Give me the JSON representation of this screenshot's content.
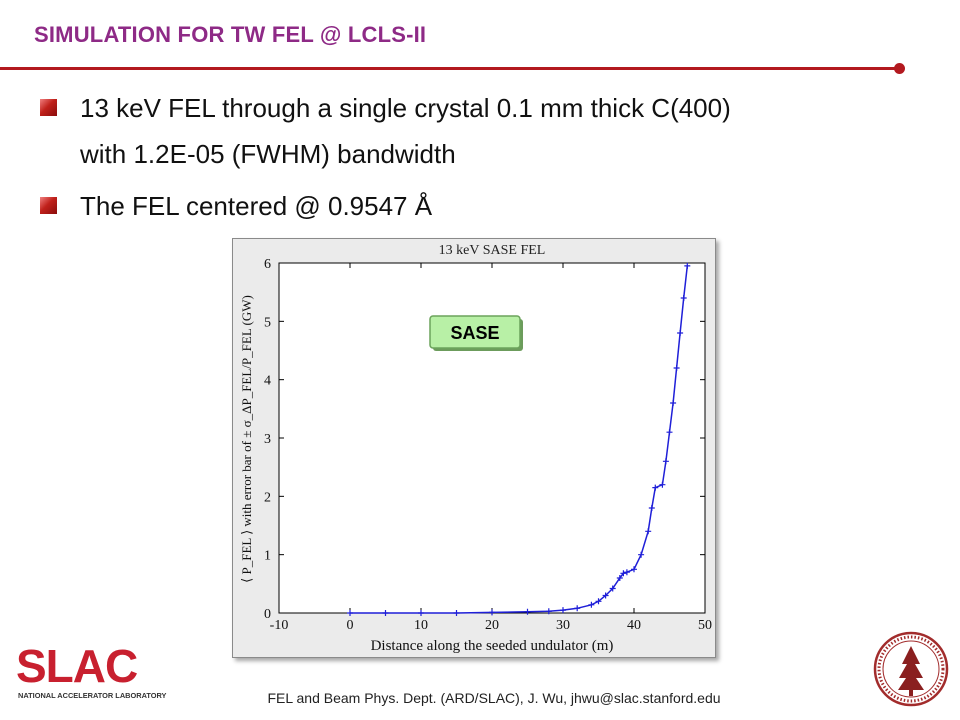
{
  "slide": {
    "title": "SIMULATION FOR TW FEL @ LCLS-II",
    "bullets": [
      "13 keV FEL through a single crystal 0.1 mm thick C(400)",
      "with 1.2E-05 (FWHM) bandwidth",
      "The FEL centered @ 0.9547 Å"
    ],
    "footer": "FEL and Beam Phys. Dept. (ARD/SLAC), J. Wu, jhwu@slac.stanford.edu",
    "logo_text": "SLAC",
    "logo_subtext": "NATIONAL ACCELERATOR LABORATORY",
    "colors": {
      "title": "#8e2a86",
      "rule": "#b3191f",
      "series": "#1f1fd8",
      "slac_red": "#c8202f"
    }
  },
  "chart_data": {
    "type": "line",
    "title": "13 keV SASE FEL",
    "xlabel": "Distance along the seeded undulator (m)",
    "ylabel": "⟨ P_FEL ⟩ with error bar of ± σ_ΔP_FEL/P_FEL (GW)",
    "xlim": [
      -10,
      50
    ],
    "ylim": [
      0,
      6
    ],
    "xticks": [
      -10,
      0,
      10,
      20,
      30,
      40,
      50
    ],
    "yticks": [
      0,
      1,
      2,
      3,
      4,
      5,
      6
    ],
    "annotation": "SASE",
    "series": [
      {
        "color": "#1f1fd8",
        "x": [
          0,
          5,
          10,
          15,
          20,
          25,
          28,
          30,
          32,
          34,
          35,
          36,
          37,
          38,
          38.5,
          39,
          40,
          41,
          42,
          42.5,
          43,
          44,
          44.5,
          45,
          45.5,
          46,
          46.5,
          47,
          47.5
        ],
        "y": [
          0,
          0,
          0,
          0,
          0.01,
          0.02,
          0.03,
          0.05,
          0.08,
          0.14,
          0.2,
          0.3,
          0.42,
          0.6,
          0.68,
          0.7,
          0.75,
          1.0,
          1.4,
          1.8,
          2.15,
          2.2,
          2.6,
          3.1,
          3.6,
          4.2,
          4.8,
          5.4,
          5.95
        ]
      }
    ]
  }
}
